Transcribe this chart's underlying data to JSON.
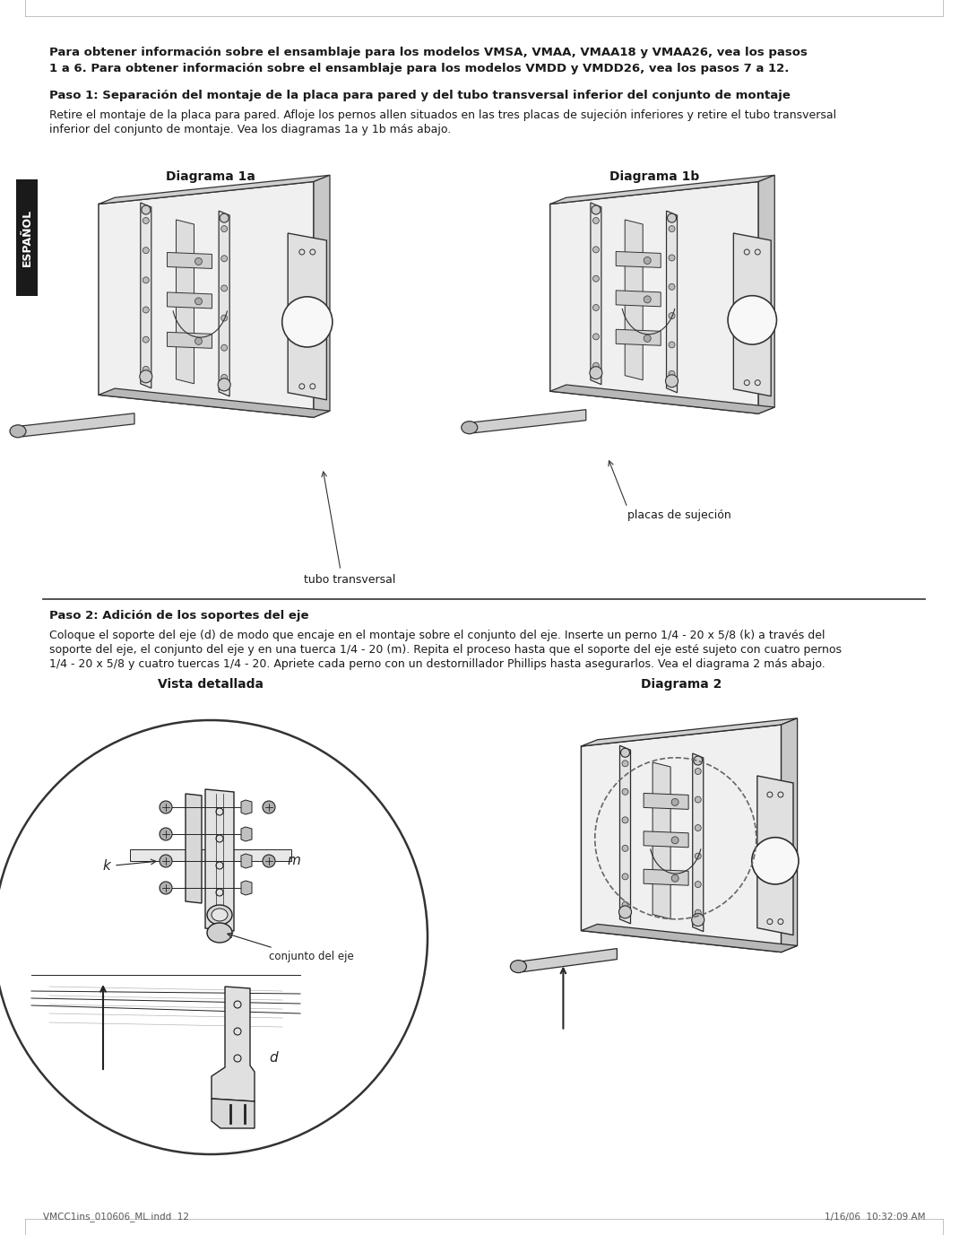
{
  "page_width": 10.8,
  "page_height": 13.77,
  "bg_color": "#ffffff",
  "text_color": "#1a1a1a",
  "sidebar_color": "#1a1a1a",
  "sidebar_text": "ESPAÑOL",
  "header_bold_line1": "Para obtener información sobre el ensamblaje para los modelos VMSA, VMAA, VMAA18 y VMAA26, vea los pasos",
  "header_bold_line2": "1 a 6. Para obtener información sobre el ensamblaje para los modelos VMDD y VMDD26, vea los pasos 7 a 12.",
  "step1_title": "Paso 1: Separación del montaje de la placa para pared y del tubo transversal inferior del conjunto de montaje",
  "step1_body_line1": "Retire el montaje de la placa para pared. Afloje los pernos allen situados en las tres placas de sujeción inferiores y retire el tubo transversal",
  "step1_body_line2": "inferior del conjunto de montaje. Vea los diagramas 1a y 1b más abajo.",
  "diag1a_title": "Diagrama 1a",
  "diag1b_title": "Diagrama 1b",
  "label_tubo": "tubo transversal",
  "label_placas": "placas de sujeción",
  "step2_title": "Paso 2: Adición de los soportes del eje",
  "step2_body_line1": "Coloque el soporte del eje (d) de modo que encaje en el montaje sobre el conjunto del eje. Inserte un perno 1/4 - 20 x 5/8 (k) a través del",
  "step2_body_line2": "soporte del eje, el conjunto del eje y en una tuerca 1/4 - 20 (m). Repita el proceso hasta que el soporte del eje esté sujeto con cuatro pernos",
  "step2_body_line3": "1/4 - 20 x 5/8 y cuatro tuercas 1/4 - 20. Apriete cada perno con un destornillador Phillips hasta asegurarlos. Vea el diagrama 2 más abajo.",
  "vista_title": "Vista detallada",
  "diag2_title": "Diagrama 2",
  "label_m": "m",
  "label_k": "k",
  "label_conjunto": "conjunto del eje",
  "label_d": "d",
  "footer_left": "VMCC1ins_010606_ML.indd  12",
  "footer_right": "1/16/06  10:32:09 AM",
  "draw_color": "#333333",
  "light_gray": "#e8e8e8",
  "mid_gray": "#c0c0c0",
  "dark_gray": "#888888"
}
